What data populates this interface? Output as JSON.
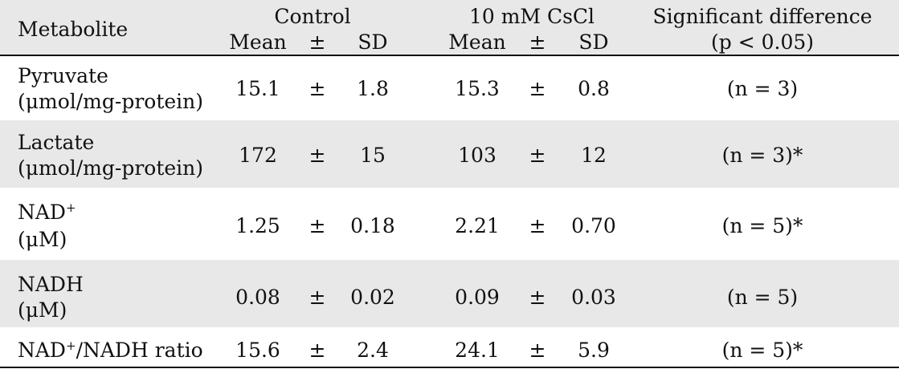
{
  "header": {
    "metabolite": "Metabolite",
    "control": "Control",
    "cscl": "10 mM CsCl",
    "sig_line1": "Significant difference",
    "sig_line2": "(p < 0.05)",
    "mean": "Mean",
    "pm": "±",
    "sd": "SD"
  },
  "rows": [
    {
      "name": "Pyruvate",
      "unit": "(μmol/mg-protein)",
      "c_mean": "15.1",
      "c_sd": "1.8",
      "t_mean": "15.3",
      "t_sd": "0.8",
      "sig": "(n = 3)"
    },
    {
      "name": "Lactate",
      "unit": "(μmol/mg-protein)",
      "c_mean": "172",
      "c_sd": "15",
      "t_mean": "103",
      "t_sd": "12",
      "sig": "(n = 3)*"
    },
    {
      "name": "NAD",
      "sup": "+",
      "unit": "(μM)",
      "c_mean": "1.25",
      "c_sd": "0.18",
      "t_mean": "2.21",
      "t_sd": "0.70",
      "sig": "(n = 5)*"
    },
    {
      "name": "NADH",
      "unit": "(μM)",
      "c_mean": "0.08",
      "c_sd": "0.02",
      "t_mean": "0.09",
      "t_sd": "0.03",
      "sig": "(n = 5)"
    },
    {
      "name": "NAD",
      "sup": "+",
      "name_tail": "/NADH ratio",
      "c_mean": "15.6",
      "c_sd": "2.4",
      "t_mean": "24.1",
      "t_sd": "5.9",
      "sig": "(n = 5)*"
    }
  ],
  "colors": {
    "band": "#e8e8e8",
    "rule": "#111111",
    "text": "#111111"
  }
}
